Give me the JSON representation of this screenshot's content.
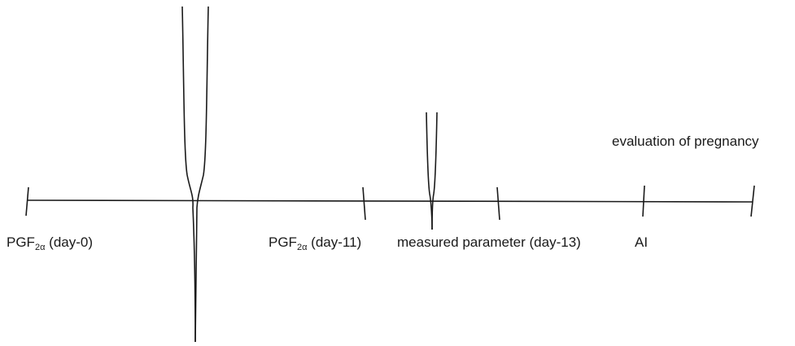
{
  "labels": {
    "pgf_day0_prefix": "PGF",
    "pgf_day0_sub": "2α",
    "pgf_day0_suffix": " (day-0)",
    "pgf_day11_prefix": "PGF",
    "pgf_day11_sub": "2α",
    "pgf_day11_suffix": " (day-11)",
    "measured": "measured parameter (day-13)",
    "ai": "AI",
    "evaluation": "evaluation of pregnancy"
  },
  "colors": {
    "line": "#1a1a1a",
    "text": "#1a1a1a",
    "background": "#ffffff"
  }
}
